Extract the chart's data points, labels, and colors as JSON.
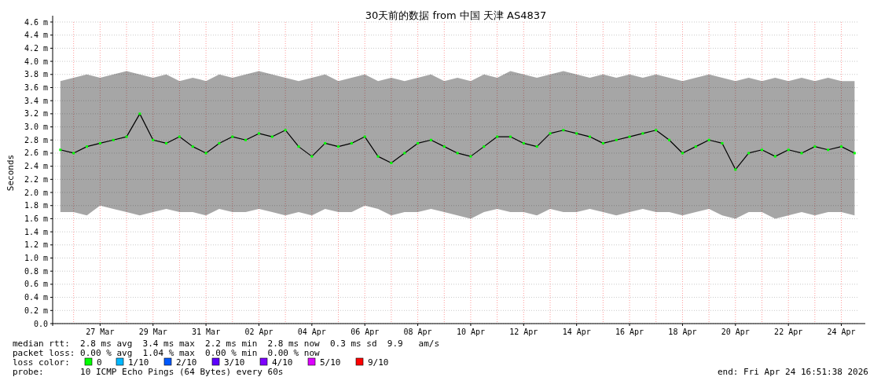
{
  "chart_data": {
    "type": "line",
    "title": "30天前的数据 from 中国 天津 AS4837",
    "ylabel": "Seconds",
    "legend_title": "loss color:",
    "legend": "bottom",
    "grid": true,
    "marker": "square",
    "xlim": [
      "2026-03-25T05:00",
      "2026-04-24T16:00"
    ],
    "xticks": [
      {
        "value": "2026-03-27",
        "label": "27 Mar"
      },
      {
        "value": "2026-03-29",
        "label": "29 Mar"
      },
      {
        "value": "2026-03-31",
        "label": "31 Mar"
      },
      {
        "value": "2026-04-02",
        "label": "02 Apr"
      },
      {
        "value": "2026-04-04",
        "label": "04 Apr"
      },
      {
        "value": "2026-04-06",
        "label": "06 Apr"
      },
      {
        "value": "2026-04-08",
        "label": "08 Apr"
      },
      {
        "value": "2026-04-10",
        "label": "10 Apr"
      },
      {
        "value": "2026-04-12",
        "label": "12 Apr"
      },
      {
        "value": "2026-04-14",
        "label": "14 Apr"
      },
      {
        "value": "2026-04-16",
        "label": "16 Apr"
      },
      {
        "value": "2026-04-18",
        "label": "18 Apr"
      },
      {
        "value": "2026-04-20",
        "label": "20 Apr"
      },
      {
        "value": "2026-04-22",
        "label": "22 Apr"
      },
      {
        "value": "2026-04-24",
        "label": "24 Apr"
      }
    ],
    "ylim": [
      0,
      4.6
    ],
    "yticks": [
      {
        "value": 0,
        "label": "0.0"
      },
      {
        "value": 0.2,
        "label": "0.2 m"
      },
      {
        "value": 0.4,
        "label": "0.4 m"
      },
      {
        "value": 0.6,
        "label": "0.6 m"
      },
      {
        "value": 0.8,
        "label": "0.8 m"
      },
      {
        "value": 1.0,
        "label": "1.0 m"
      },
      {
        "value": 1.2,
        "label": "1.2 m"
      },
      {
        "value": 1.4,
        "label": "1.4 m"
      },
      {
        "value": 1.6,
        "label": "1.6 m"
      },
      {
        "value": 1.8,
        "label": "1.8 m"
      },
      {
        "value": 2.0,
        "label": "2.0 m"
      },
      {
        "value": 2.2,
        "label": "2.2 m"
      },
      {
        "value": 2.4,
        "label": "2.4 m"
      },
      {
        "value": 2.6,
        "label": "2.6 m"
      },
      {
        "value": 2.8,
        "label": "2.8 m"
      },
      {
        "value": 3.0,
        "label": "3.0 m"
      },
      {
        "value": 3.2,
        "label": "3.2 m"
      },
      {
        "value": 3.4,
        "label": "3.4 m"
      },
      {
        "value": 3.6,
        "label": "3.6 m"
      },
      {
        "value": 3.8,
        "label": "3.8 m"
      },
      {
        "value": 4.0,
        "label": "4.0 m"
      },
      {
        "value": 4.2,
        "label": "4.2 m"
      },
      {
        "value": 4.4,
        "label": "4.4 m"
      },
      {
        "value": 4.6,
        "label": "4.6 m"
      }
    ],
    "x": [
      "2026-03-25T12:00",
      "2026-03-26",
      "2026-03-26T12:00",
      "2026-03-27",
      "2026-03-27T12:00",
      "2026-03-28",
      "2026-03-28T12:00",
      "2026-03-29",
      "2026-03-29T12:00",
      "2026-03-30",
      "2026-03-30T12:00",
      "2026-03-31",
      "2026-03-31T12:00",
      "2026-04-01",
      "2026-04-01T12:00",
      "2026-04-02",
      "2026-04-02T12:00",
      "2026-04-03",
      "2026-04-03T12:00",
      "2026-04-04",
      "2026-04-04T12:00",
      "2026-04-05",
      "2026-04-05T12:00",
      "2026-04-06",
      "2026-04-06T12:00",
      "2026-04-07",
      "2026-04-07T12:00",
      "2026-04-08",
      "2026-04-08T12:00",
      "2026-04-09",
      "2026-04-09T12:00",
      "2026-04-10",
      "2026-04-10T12:00",
      "2026-04-11",
      "2026-04-11T12:00",
      "2026-04-12",
      "2026-04-12T12:00",
      "2026-04-13",
      "2026-04-13T12:00",
      "2026-04-14",
      "2026-04-14T12:00",
      "2026-04-15",
      "2026-04-15T12:00",
      "2026-04-16",
      "2026-04-16T12:00",
      "2026-04-17",
      "2026-04-17T12:00",
      "2026-04-18",
      "2026-04-18T12:00",
      "2026-04-19",
      "2026-04-19T12:00",
      "2026-04-20",
      "2026-04-20T12:00",
      "2026-04-21",
      "2026-04-21T12:00",
      "2026-04-22",
      "2026-04-22T12:00",
      "2026-04-23",
      "2026-04-23T12:00",
      "2026-04-24",
      "2026-04-24T12:00"
    ],
    "series": [
      {
        "color": "#000000",
        "marker": "none",
        "values": [
          2.65,
          2.6,
          2.7,
          2.75,
          2.8,
          2.85,
          3.2,
          2.8,
          2.75,
          2.85,
          2.7,
          2.6,
          2.75,
          2.85,
          2.8,
          2.9,
          2.85,
          2.95,
          2.7,
          2.55,
          2.75,
          2.7,
          2.75,
          2.85,
          2.55,
          2.45,
          2.6,
          2.75,
          2.8,
          2.7,
          2.6,
          2.55,
          2.7,
          2.85,
          2.85,
          2.75,
          2.7,
          2.9,
          2.95,
          2.9,
          2.85,
          2.75,
          2.8,
          2.85,
          2.9,
          2.95,
          2.8,
          2.6,
          2.7,
          2.8,
          2.75,
          2.35,
          2.6,
          2.65,
          2.55,
          2.65,
          2.6,
          2.7,
          2.65,
          2.7,
          2.6
        ],
        "lower": [
          1.7,
          1.7,
          1.65,
          1.8,
          1.75,
          1.7,
          1.65,
          1.7,
          1.75,
          1.7,
          1.7,
          1.65,
          1.75,
          1.7,
          1.7,
          1.75,
          1.7,
          1.65,
          1.7,
          1.65,
          1.75,
          1.7,
          1.7,
          1.8,
          1.75,
          1.65,
          1.7,
          1.7,
          1.75,
          1.7,
          1.65,
          1.6,
          1.7,
          1.75,
          1.7,
          1.7,
          1.65,
          1.75,
          1.7,
          1.7,
          1.75,
          1.7,
          1.65,
          1.7,
          1.75,
          1.7,
          1.7,
          1.65,
          1.7,
          1.75,
          1.65,
          1.6,
          1.7,
          1.7,
          1.6,
          1.65,
          1.7,
          1.65,
          1.7,
          1.7,
          1.65
        ],
        "upper": [
          3.7,
          3.75,
          3.8,
          3.75,
          3.8,
          3.85,
          3.8,
          3.75,
          3.8,
          3.7,
          3.75,
          3.7,
          3.8,
          3.75,
          3.8,
          3.85,
          3.8,
          3.75,
          3.7,
          3.75,
          3.8,
          3.7,
          3.75,
          3.8,
          3.7,
          3.75,
          3.7,
          3.75,
          3.8,
          3.7,
          3.75,
          3.7,
          3.8,
          3.75,
          3.85,
          3.8,
          3.75,
          3.8,
          3.85,
          3.8,
          3.75,
          3.8,
          3.75,
          3.8,
          3.75,
          3.8,
          3.75,
          3.7,
          3.75,
          3.8,
          3.75,
          3.7,
          3.75,
          3.7,
          3.75,
          3.7,
          3.75,
          3.7,
          3.75,
          3.7,
          3.7
        ]
      },
      {
        "type": "scatter",
        "name": "0",
        "color": "#00ff00",
        "values": [
          2.65,
          2.6,
          2.7,
          2.75,
          2.8,
          2.85,
          3.2,
          2.8,
          2.75,
          2.85,
          2.7,
          2.6,
          2.75,
          2.85,
          2.8,
          2.9,
          2.85,
          2.95,
          2.7,
          2.55,
          2.75,
          2.7,
          2.75,
          2.85,
          2.55,
          2.45,
          2.6,
          2.75,
          2.8,
          2.7,
          2.6,
          2.55,
          2.7,
          2.85,
          2.85,
          2.75,
          2.7,
          2.9,
          2.95,
          2.9,
          2.85,
          2.75,
          2.8,
          2.85,
          2.9,
          2.95,
          2.8,
          2.6,
          2.7,
          2.8,
          2.75,
          2.35,
          2.6,
          2.65,
          2.55,
          2.65,
          2.6,
          2.7,
          2.65,
          2.7,
          2.6
        ]
      },
      {
        "type": "scatter",
        "name": "1/10",
        "color": "#00b8ff",
        "values": [
          null,
          null,
          null,
          null,
          null,
          null,
          null,
          null,
          null,
          null,
          null,
          null,
          null,
          null,
          null,
          null,
          null,
          null,
          null,
          null,
          null,
          null,
          null,
          null,
          null,
          null,
          null,
          null,
          null,
          null,
          null,
          null,
          null,
          null,
          null,
          null,
          null,
          null,
          null,
          null,
          null,
          null,
          null,
          null,
          null,
          null,
          null,
          null,
          null,
          null,
          null,
          null,
          null,
          null,
          null,
          null,
          null,
          null,
          null,
          null,
          null
        ]
      },
      {
        "type": "scatter",
        "name": "2/10",
        "color": "#0059ff",
        "values": [
          null,
          null,
          null,
          null,
          null,
          null,
          null,
          null,
          null,
          null,
          null,
          null,
          null,
          null,
          null,
          null,
          null,
          null,
          null,
          null,
          null,
          null,
          null,
          null,
          null,
          null,
          null,
          null,
          null,
          null,
          null,
          null,
          null,
          null,
          null,
          null,
          null,
          null,
          null,
          null,
          null,
          null,
          null,
          null,
          null,
          null,
          null,
          null,
          null,
          null,
          null,
          null,
          null,
          null,
          null,
          null,
          null,
          null,
          null,
          null,
          null
        ]
      },
      {
        "type": "scatter",
        "name": "3/10",
        "color": "#5e00ff",
        "values": [
          null,
          null,
          null,
          null,
          null,
          null,
          null,
          null,
          null,
          null,
          null,
          null,
          null,
          null,
          null,
          null,
          null,
          null,
          null,
          null,
          null,
          null,
          null,
          null,
          null,
          null,
          null,
          null,
          null,
          null,
          null,
          null,
          null,
          null,
          null,
          null,
          null,
          null,
          null,
          null,
          null,
          null,
          null,
          null,
          null,
          null,
          null,
          null,
          null,
          null,
          null,
          null,
          null,
          null,
          null,
          null,
          null,
          null,
          null,
          null,
          null
        ]
      },
      {
        "type": "scatter",
        "name": "4/10",
        "color": "#7e00ff",
        "values": [
          null,
          null,
          null,
          null,
          null,
          null,
          null,
          null,
          null,
          null,
          null,
          null,
          null,
          null,
          null,
          null,
          null,
          null,
          null,
          null,
          null,
          null,
          null,
          null,
          null,
          null,
          null,
          null,
          null,
          null,
          null,
          null,
          null,
          null,
          null,
          null,
          null,
          null,
          null,
          null,
          null,
          null,
          null,
          null,
          null,
          null,
          null,
          null,
          null,
          null,
          null,
          null,
          null,
          null,
          null,
          null,
          null,
          null,
          null,
          null,
          null
        ]
      },
      {
        "type": "scatter",
        "name": "5/10",
        "color": "#dd00ff",
        "values": [
          null,
          null,
          null,
          null,
          null,
          null,
          null,
          null,
          null,
          null,
          null,
          null,
          null,
          null,
          null,
          null,
          null,
          null,
          null,
          null,
          null,
          null,
          null,
          null,
          null,
          null,
          null,
          null,
          null,
          null,
          null,
          null,
          null,
          null,
          null,
          null,
          null,
          null,
          null,
          null,
          null,
          null,
          null,
          null,
          null,
          null,
          null,
          null,
          null,
          null,
          null,
          null,
          null,
          null,
          null,
          null,
          null,
          null,
          null,
          null,
          null
        ]
      },
      {
        "type": "scatter",
        "name": "9/10",
        "color": "#ff0000",
        "values": [
          null,
          null,
          null,
          null,
          null,
          null,
          null,
          null,
          null,
          null,
          null,
          null,
          null,
          null,
          null,
          null,
          null,
          null,
          null,
          null,
          null,
          null,
          null,
          null,
          null,
          null,
          null,
          null,
          null,
          null,
          null,
          null,
          null,
          null,
          null,
          null,
          null,
          null,
          null,
          null,
          null,
          null,
          null,
          null,
          null,
          null,
          null,
          null,
          null,
          null,
          null,
          null,
          null,
          null,
          null,
          null,
          null,
          null,
          null,
          null,
          null
        ]
      }
    ],
    "annotations": [
      "median rtt:  2.8 ms avg  3.4 ms max  2.2 ms min  2.8 ms now  0.3 ms sd  9.9   am/s",
      "packet loss: 0.00 % avg  1.04 % max  0.00 % min  0.00 % now",
      "probe:       10 ICMP Echo Pings (64 Bytes) every 60s",
      "end: Fri Apr 24 16:51:38 2026"
    ]
  }
}
